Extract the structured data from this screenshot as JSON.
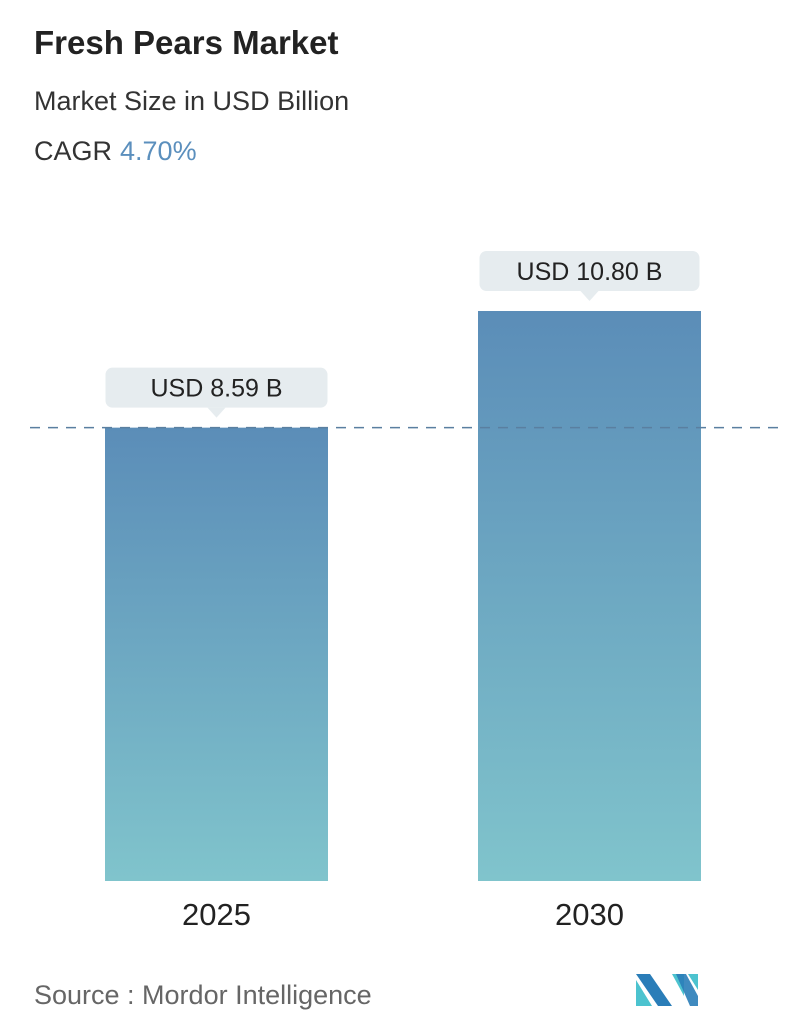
{
  "header": {
    "title": "Fresh Pears Market",
    "subtitle": "Market Size in USD Billion",
    "cagr_label": "CAGR",
    "cagr_value": "4.70%"
  },
  "source": "Source :  Mordor Intelligence",
  "logo_text": "Mordor Intelligence",
  "colors": {
    "bar_top": "#5b8db8",
    "bar_bottom": "#80c4cc",
    "accent": "#5b8fbd",
    "dashed_line": "#5a7fa0",
    "label_bg": "#e6ecef"
  },
  "chart_data": {
    "type": "bar",
    "categories": [
      "2025",
      "2030"
    ],
    "values": [
      8.59,
      10.8
    ],
    "data_labels": [
      "USD 8.59 B",
      "USD 10.80 B"
    ],
    "reference_line": 8.59,
    "grid": false,
    "ylim": [
      0,
      10.8
    ]
  }
}
